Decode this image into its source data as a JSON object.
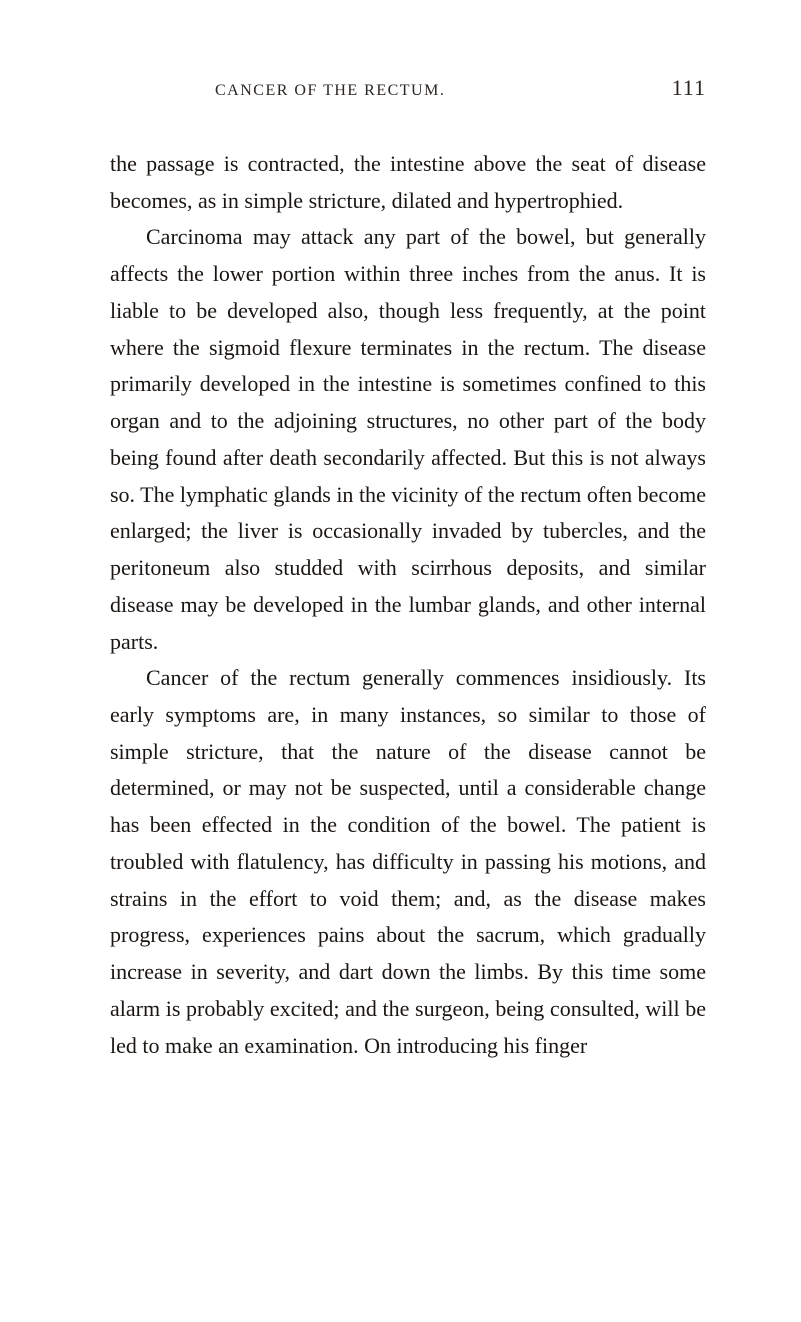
{
  "header": {
    "title": "CANCER OF THE RECTUM.",
    "pageNumber": "111"
  },
  "body": {
    "para1": "the passage is contracted, the intestine above the seat of disease becomes, as in simple stricture, dilated and hypertrophied.",
    "para2": "Carcinoma may attack any part of the bowel, but generally affects the lower portion within three inches from the anus. It is liable to be developed also, though less frequently, at the point where the sigmoid flexure terminates in the rectum. The disease primarily developed in the intestine is sometimes confined to this organ and to the adjoining structures, no other part of the body being found after death secondarily affected. But this is not always so. The lymphatic glands in the vicinity of the rectum often become enlarged; the liver is occasionally invaded by tubercles, and the peritoneum also studded with scirrhous deposits, and similar disease may be developed in the lumbar glands, and other internal parts.",
    "para3": "Cancer of the rectum generally commences insidiously. Its early symptoms are, in many instances, so similar to those of simple stricture, that the nature of the disease cannot be determined, or may not be suspected, until a considerable change has been effected in the condition of the bowel. The patient is troubled with flatulency, has difficulty in passing his motions, and strains in the effort to void them; and, as the disease makes progress, experiences pains about the sacrum, which gradually increase in severity, and dart down the limbs. By this time some alarm is probably excited; and the surgeon, being consulted, will be led to make an examination. On introducing his finger"
  },
  "styling": {
    "backgroundColor": "#ffffff",
    "textColor": "#1a1612",
    "headerColor": "#2a2520",
    "bodyFontSize": 22,
    "headerFontSize": 16,
    "pageNumFontSize": 22,
    "lineHeight": 1.67,
    "fontFamily": "Georgia, Times New Roman, serif"
  }
}
